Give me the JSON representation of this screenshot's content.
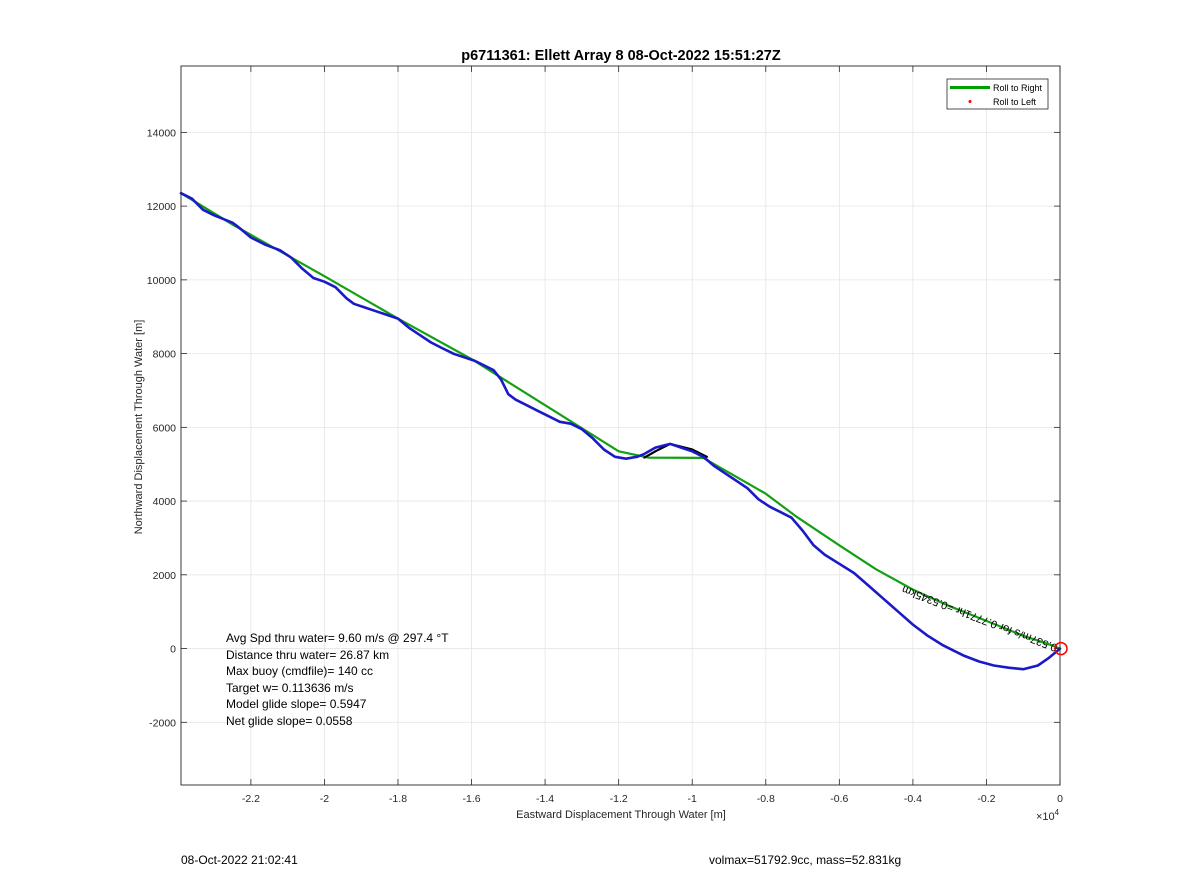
{
  "chart_data": {
    "type": "line",
    "title": "p6711361: Ellett Array 8 08-Oct-2022 15:51:27Z",
    "xlabel": "Eastward Displacement Through Water [m]",
    "ylabel": "Northward Displacement Through Water [m]",
    "x_exponent_label": "×10",
    "x_exponent_power": "4",
    "xlim": [
      -2.39,
      0
    ],
    "ylim": [
      -3700,
      15800
    ],
    "x_ticks": [
      -2.2,
      -2,
      -1.8,
      -1.6,
      -1.4,
      -1.2,
      -1,
      -0.8,
      -0.6,
      -0.4,
      -0.2,
      0
    ],
    "x_tick_labels": [
      "-2.2",
      "-2",
      "-1.8",
      "-1.6",
      "-1.4",
      "-1.2",
      "-1",
      "-0.8",
      "-0.6",
      "-0.4",
      "-0.2",
      "0"
    ],
    "y_ticks": [
      -2000,
      0,
      2000,
      4000,
      6000,
      8000,
      10000,
      12000,
      14000
    ],
    "y_tick_labels": [
      "-2000",
      "0",
      "2000",
      "4000",
      "6000",
      "8000",
      "10000",
      "12000",
      "14000"
    ],
    "grid": true,
    "legend": {
      "position": "top-right",
      "entries": [
        {
          "label": "Roll to Right",
          "color": "#00a000",
          "style": "line"
        },
        {
          "label": "Roll to Left",
          "color": "#ff0000",
          "style": "dot"
        }
      ]
    },
    "series": [
      {
        "name": "Roll to Right",
        "color": "#14a014",
        "x": [
          -2.39,
          -2.25,
          -2.0,
          -1.8,
          -1.6,
          -1.4,
          -1.2,
          -1.12,
          -0.97,
          -0.8,
          -0.72,
          -0.6,
          -0.5,
          -0.4,
          -0.3,
          -0.2,
          -0.1,
          -0.02,
          0
        ],
        "y": [
          12350,
          11500,
          10100,
          8950,
          7850,
          6600,
          5350,
          5180,
          5170,
          4200,
          3600,
          2800,
          2150,
          1600,
          1150,
          750,
          350,
          80,
          0
        ]
      },
      {
        "name": "track",
        "color": "#000000",
        "x": [
          -1.13,
          -1.1,
          -1.06,
          -1.0,
          -0.96
        ],
        "y": [
          5180,
          5350,
          5550,
          5400,
          5200
        ]
      },
      {
        "name": "track",
        "color": "#1a1ac8",
        "x": [
          -2.39,
          -2.36,
          -2.33,
          -2.3,
          -2.25,
          -2.23,
          -2.2,
          -2.16,
          -2.12,
          -2.09,
          -2.06,
          -2.03,
          -2.0,
          -1.97,
          -1.94,
          -1.92,
          -1.89,
          -1.86,
          -1.83,
          -1.8,
          -1.77,
          -1.74,
          -1.71,
          -1.68,
          -1.65,
          -1.62,
          -1.59,
          -1.56,
          -1.54,
          -1.52,
          -1.5,
          -1.48,
          -1.45,
          -1.42,
          -1.39,
          -1.36,
          -1.33,
          -1.3,
          -1.27,
          -1.24,
          -1.21,
          -1.18,
          -1.15,
          -1.13,
          -1.1,
          -1.06,
          -1.03,
          -1.0,
          -0.97,
          -0.94,
          -0.91,
          -0.88,
          -0.85,
          -0.82,
          -0.79,
          -0.76,
          -0.73,
          -0.7,
          -0.67,
          -0.64,
          -0.6,
          -0.56,
          -0.52,
          -0.48,
          -0.44,
          -0.4,
          -0.36,
          -0.32,
          -0.29,
          -0.26,
          -0.22,
          -0.18,
          -0.14,
          -0.1,
          -0.06,
          -0.03,
          0
        ],
        "y": [
          12350,
          12200,
          11900,
          11750,
          11550,
          11400,
          11150,
          10950,
          10800,
          10600,
          10300,
          10050,
          9950,
          9800,
          9500,
          9350,
          9250,
          9150,
          9050,
          8950,
          8700,
          8500,
          8300,
          8150,
          8000,
          7900,
          7800,
          7650,
          7550,
          7300,
          6900,
          6750,
          6600,
          6450,
          6300,
          6150,
          6100,
          5950,
          5700,
          5400,
          5200,
          5150,
          5200,
          5280,
          5450,
          5550,
          5450,
          5350,
          5200,
          4950,
          4750,
          4550,
          4350,
          4050,
          3850,
          3700,
          3550,
          3200,
          2800,
          2550,
          2300,
          2050,
          1700,
          1350,
          1000,
          650,
          350,
          100,
          -50,
          -200,
          -350,
          -460,
          -520,
          -560,
          -460,
          -250,
          0
        ]
      }
    ],
    "track_annotation": "0.537m/s for 0.7771hr =0.5345km",
    "end_marker": {
      "x": 0,
      "y": 0,
      "color": "#ff0000"
    },
    "annotations": [
      "Avg Spd thru water=  9.60 m/s @ 297.4 °T",
      "Distance thru water= 26.87 km",
      "Max buoy (cmdfile)= 140 cc",
      "Target w= 0.113636 m/s",
      "Model glide slope= 0.5947",
      "Net glide slope= 0.0558"
    ]
  },
  "footer": {
    "timestamp": "08-Oct-2022 21:02:41",
    "vehicle_info": "volmax=51792.9cc, mass=52.831kg"
  }
}
